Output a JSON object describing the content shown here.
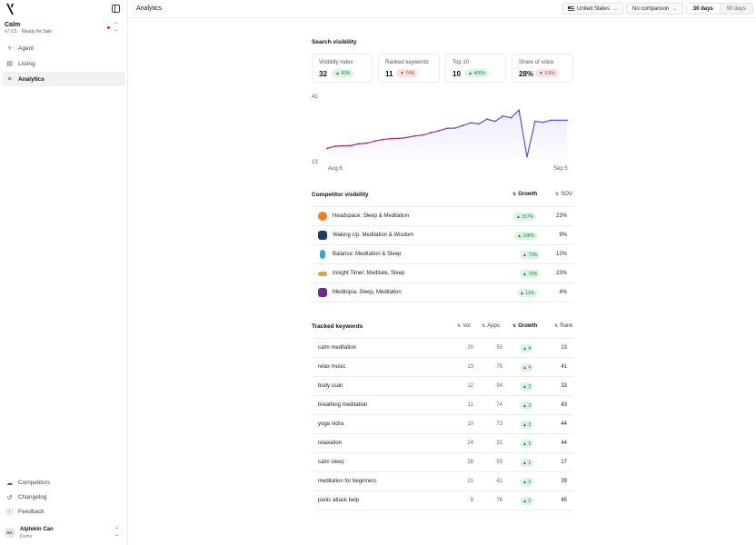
{
  "sidebar": {
    "app": {
      "name": "Calm",
      "version": "v7.0.5",
      "status": "Ready for Sale"
    },
    "nav": [
      {
        "label": "Agent",
        "icon": "sparkle-icon"
      },
      {
        "label": "Listing",
        "icon": "document-icon"
      },
      {
        "label": "Analytics",
        "icon": "filter-icon",
        "active": true
      }
    ],
    "bottom_nav": [
      {
        "label": "Competitors",
        "icon": "cloud-icon"
      },
      {
        "label": "Changelog",
        "icon": "history-icon"
      },
      {
        "label": "Feedback",
        "icon": "help-icon"
      }
    ],
    "user": {
      "initials": "AC",
      "name": "Alptekin Can",
      "role": "Demo"
    }
  },
  "topbar": {
    "title": "Analytics",
    "country": "United States",
    "comparison": "No comparison",
    "periods": [
      "30 days",
      "90 days"
    ],
    "active_period": "30 days"
  },
  "search_visibility": {
    "title": "Search visibility",
    "stats": [
      {
        "label": "Visibility index",
        "value": "32",
        "change": "60%",
        "direction": "up"
      },
      {
        "label": "Ranked keywords",
        "value": "11",
        "change": "74%",
        "direction": "down"
      },
      {
        "label": "Top 10",
        "value": "10",
        "change": "400%",
        "direction": "up"
      },
      {
        "label": "Share of voice",
        "value": "28%",
        "change": "3.6%",
        "direction": "down"
      }
    ]
  },
  "chart_data": {
    "type": "line",
    "title": "",
    "y_tick_labels": [
      "41",
      "13"
    ],
    "ylim": [
      13,
      41
    ],
    "x_tick_labels": [
      "Aug 6",
      "Sep 5"
    ],
    "values": [
      18.5,
      19.5,
      19.7,
      19.8,
      20.6,
      20.9,
      21.8,
      22.5,
      22.9,
      23.0,
      23.4,
      24.1,
      24.5,
      25.6,
      26.4,
      27.5,
      27.6,
      28.8,
      30.0,
      29.5,
      31.6,
      30.6,
      33.0,
      32.2,
      35.6,
      14.8,
      30.6,
      30.2,
      31.1,
      31.1,
      31.1
    ],
    "line_color_start": "#c2185b",
    "line_color_end": "#4b5cf0",
    "fill_color": "#ece9fb"
  },
  "competitors": {
    "title": "Competitor visibility",
    "headers": {
      "growth": "Growth",
      "sov": "SOV"
    },
    "rows": [
      {
        "name": "Headspace: Sleep & Meditation",
        "growth": "157%",
        "sov": "23%",
        "icon_color": "#f47d20"
      },
      {
        "name": "Waking Up: Meditation & Wisdom",
        "growth": "108%",
        "sov": "9%",
        "icon_color": "#1d3b63"
      },
      {
        "name": "Balance: Meditation & Sleep",
        "growth": "73%",
        "sov": "12%",
        "icon_color": "#3aa6c9"
      },
      {
        "name": "Insight Timer: Meditate, Sleep",
        "growth": "70%",
        "sov": "23%",
        "icon_color": "#e0a528"
      },
      {
        "name": "Meditopia: Sleep, Meditation",
        "growth": "11%",
        "sov": "4%",
        "icon_color": "#6a2c91"
      }
    ]
  },
  "keywords": {
    "title": "Tracked keywords",
    "headers": {
      "vol": "Vol",
      "apps": "Apps",
      "growth": "Growth",
      "rank": "Rank"
    },
    "rows": [
      {
        "keyword": "calm meditation",
        "vol": "20",
        "apps": "50",
        "growth": "4",
        "rank": "13"
      },
      {
        "keyword": "relax music",
        "vol": "13",
        "apps": "75",
        "growth": "4",
        "rank": "41"
      },
      {
        "keyword": "body scan",
        "vol": "12",
        "apps": "94",
        "growth": "3",
        "rank": "33"
      },
      {
        "keyword": "breathing meditation",
        "vol": "11",
        "apps": "74",
        "growth": "3",
        "rank": "43"
      },
      {
        "keyword": "yoga nidra",
        "vol": "10",
        "apps": "73",
        "growth": "3",
        "rank": "44"
      },
      {
        "keyword": "relaxation",
        "vol": "24",
        "apps": "31",
        "growth": "3",
        "rank": "44"
      },
      {
        "keyword": "calm sleep",
        "vol": "28",
        "apps": "93",
        "growth": "2",
        "rank": "17"
      },
      {
        "keyword": "meditation for beginners",
        "vol": "21",
        "apps": "41",
        "growth": "2",
        "rank": "39"
      },
      {
        "keyword": "panic attack help",
        "vol": "9",
        "apps": "76",
        "growth": "2",
        "rank": "45"
      }
    ]
  }
}
